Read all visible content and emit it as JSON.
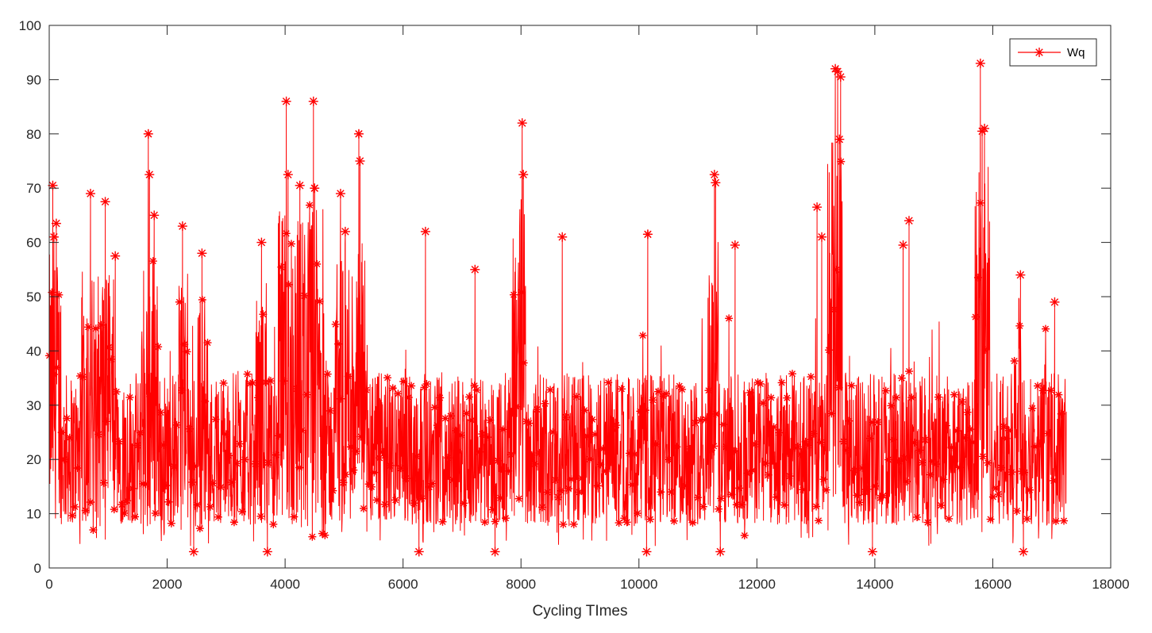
{
  "chart_data": {
    "type": "line",
    "xlabel": "Cycling TImes",
    "ylabel": "",
    "xlim": [
      0,
      18000
    ],
    "ylim": [
      0,
      100
    ],
    "x_ticks": [
      0,
      2000,
      4000,
      6000,
      8000,
      10000,
      12000,
      14000,
      16000,
      18000
    ],
    "y_ticks": [
      0,
      10,
      20,
      30,
      40,
      50,
      60,
      70,
      80,
      90,
      100
    ],
    "grid": false,
    "legend": {
      "position": "top-right",
      "entries": [
        "Wq"
      ]
    },
    "series": [
      {
        "name": "Wq",
        "color": "#ff0000",
        "marker": "asterisk",
        "n_points": 17250,
        "x_start": 1,
        "x_end": 17250,
        "baseline_band": [
          8,
          36
        ],
        "notable_peaks": [
          {
            "x": 60,
            "y": 70.5
          },
          {
            "x": 80,
            "y": 61
          },
          {
            "x": 120,
            "y": 63.5
          },
          {
            "x": 700,
            "y": 69
          },
          {
            "x": 950,
            "y": 67.5
          },
          {
            "x": 1120,
            "y": 57.5
          },
          {
            "x": 1680,
            "y": 80
          },
          {
            "x": 1700,
            "y": 72.5
          },
          {
            "x": 1780,
            "y": 65
          },
          {
            "x": 2260,
            "y": 63
          },
          {
            "x": 2590,
            "y": 58
          },
          {
            "x": 3600,
            "y": 60
          },
          {
            "x": 4020,
            "y": 86
          },
          {
            "x": 4050,
            "y": 72.5
          },
          {
            "x": 4250,
            "y": 70.5
          },
          {
            "x": 4480,
            "y": 86
          },
          {
            "x": 4500,
            "y": 70
          },
          {
            "x": 4940,
            "y": 69
          },
          {
            "x": 5020,
            "y": 62
          },
          {
            "x": 5250,
            "y": 80
          },
          {
            "x": 5270,
            "y": 75
          },
          {
            "x": 6380,
            "y": 62
          },
          {
            "x": 7220,
            "y": 55
          },
          {
            "x": 8020,
            "y": 82
          },
          {
            "x": 8040,
            "y": 72.5
          },
          {
            "x": 8700,
            "y": 61
          },
          {
            "x": 10150,
            "y": 61.5
          },
          {
            "x": 11280,
            "y": 72.5
          },
          {
            "x": 11300,
            "y": 71
          },
          {
            "x": 11630,
            "y": 59.5
          },
          {
            "x": 13020,
            "y": 66.5
          },
          {
            "x": 13100,
            "y": 61
          },
          {
            "x": 13330,
            "y": 92
          },
          {
            "x": 13370,
            "y": 91.5
          },
          {
            "x": 13420,
            "y": 90.5
          },
          {
            "x": 13400,
            "y": 79
          },
          {
            "x": 14580,
            "y": 64
          },
          {
            "x": 14480,
            "y": 59.5
          },
          {
            "x": 15790,
            "y": 93
          },
          {
            "x": 15820,
            "y": 80.5
          },
          {
            "x": 15860,
            "y": 81
          },
          {
            "x": 16470,
            "y": 54
          },
          {
            "x": 17050,
            "y": 49
          }
        ],
        "notable_lows": [
          {
            "x": 2450,
            "y": 3
          },
          {
            "x": 3700,
            "y": 3
          },
          {
            "x": 6270,
            "y": 3
          },
          {
            "x": 7560,
            "y": 3
          },
          {
            "x": 10130,
            "y": 3
          },
          {
            "x": 11380,
            "y": 3
          },
          {
            "x": 13960,
            "y": 3
          },
          {
            "x": 16520,
            "y": 3
          }
        ],
        "elevated_segments": [
          {
            "x0": 0,
            "x1": 200,
            "lo": 9,
            "hi": 58
          },
          {
            "x0": 550,
            "x1": 1100,
            "lo": 7,
            "hi": 55
          },
          {
            "x0": 1550,
            "x1": 1850,
            "lo": 7,
            "hi": 60
          },
          {
            "x0": 2200,
            "x1": 2350,
            "lo": 7,
            "hi": 55
          },
          {
            "x0": 2500,
            "x1": 2700,
            "lo": 7,
            "hi": 52
          },
          {
            "x0": 3500,
            "x1": 3700,
            "lo": 8,
            "hi": 50
          },
          {
            "x0": 3880,
            "x1": 4700,
            "lo": 7,
            "hi": 66
          },
          {
            "x0": 4850,
            "x1": 5400,
            "lo": 8,
            "hi": 60
          },
          {
            "x0": 7850,
            "x1": 8080,
            "lo": 9,
            "hi": 68
          },
          {
            "x0": 11150,
            "x1": 11350,
            "lo": 9,
            "hi": 62
          },
          {
            "x0": 13200,
            "x1": 13450,
            "lo": 9,
            "hi": 80
          },
          {
            "x0": 15700,
            "x1": 15950,
            "lo": 9,
            "hi": 78
          },
          {
            "x0": 16350,
            "x1": 16550,
            "lo": 7,
            "hi": 50
          }
        ]
      }
    ]
  }
}
